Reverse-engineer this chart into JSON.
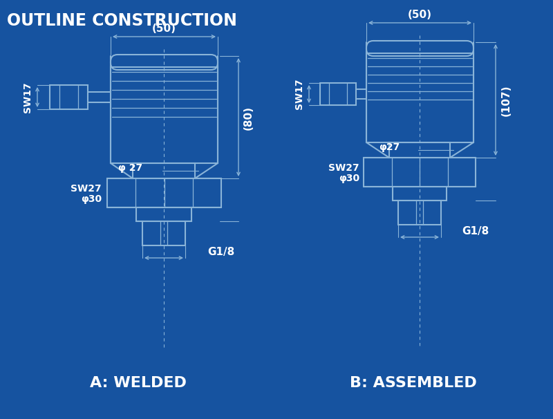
{
  "bg_color": "#1653a0",
  "line_color": "#8ab4d8",
  "white": "#ffffff",
  "title": "OUTLINE CONSTRUCTION",
  "label_a": "A: WELDED",
  "label_b": "B: ASSEMBLED",
  "dim_50_a": "(50)",
  "dim_80": "(80)",
  "dim_sw17_a": "SW17",
  "dim_27_a": "φ 27",
  "dim_sw27_a": "SW27",
  "dim_30_a": "φ30",
  "dim_g18_a": "G1/8",
  "dim_50_b": "(50)",
  "dim_107": "(107)",
  "dim_sw17_b": "SW17",
  "dim_27_b": "φ27",
  "dim_sw27_b": "SW27",
  "dim_30_b": "φ30",
  "dim_g18_b": "G1/8"
}
